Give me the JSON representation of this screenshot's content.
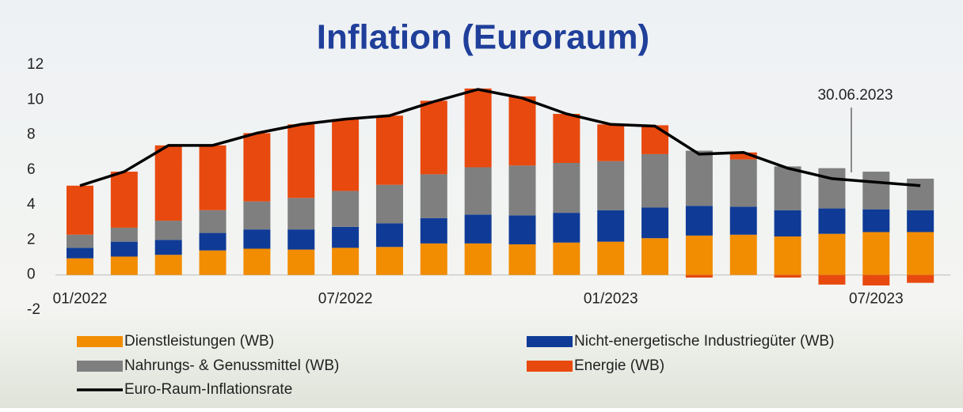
{
  "chart_data": {
    "type": "bar",
    "title": "Inflation (Euroraum)",
    "annotation": "30.06.2023",
    "categories": [
      "01/2022",
      null,
      null,
      null,
      null,
      null,
      "07/2022",
      null,
      null,
      null,
      null,
      null,
      "01/2023",
      null,
      null,
      null,
      null,
      null,
      "07/2023",
      null
    ],
    "series": [
      {
        "name": "Dienstleistungen (WB)",
        "color": "#f28c00",
        "type": "bar",
        "values": [
          0.95,
          1.05,
          1.15,
          1.4,
          1.5,
          1.45,
          1.55,
          1.6,
          1.8,
          1.8,
          1.75,
          1.85,
          1.9,
          2.1,
          2.25,
          2.3,
          2.2,
          2.35,
          2.45,
          2.45
        ]
      },
      {
        "name": "Nicht-energetische Industriegüter (WB)",
        "color": "#0f3b96",
        "type": "bar",
        "values": [
          0.6,
          0.85,
          0.85,
          1.0,
          1.1,
          1.15,
          1.2,
          1.35,
          1.45,
          1.65,
          1.65,
          1.7,
          1.8,
          1.75,
          1.7,
          1.6,
          1.5,
          1.45,
          1.3,
          1.25
        ]
      },
      {
        "name": "Nahrungs- & Genussmittel (WB)",
        "color": "#7f7f7f",
        "type": "bar",
        "values": [
          0.75,
          0.8,
          1.1,
          1.3,
          1.6,
          1.8,
          2.05,
          2.2,
          2.5,
          2.7,
          2.85,
          2.85,
          2.8,
          3.05,
          3.15,
          2.7,
          2.5,
          2.3,
          2.15,
          1.8
        ]
      },
      {
        "name": "Energie (WB)",
        "color": "#e8490f",
        "type": "bar",
        "values": [
          2.8,
          3.2,
          4.3,
          3.7,
          3.9,
          4.2,
          4.1,
          3.95,
          4.2,
          4.5,
          3.95,
          2.8,
          2.1,
          1.65,
          -0.15,
          0.4,
          -0.15,
          -0.55,
          -0.6,
          -0.45
        ]
      },
      {
        "name": "Euro-Raum-Inflationsrate",
        "color": "#000000",
        "type": "line",
        "values": [
          5.1,
          5.9,
          7.4,
          7.4,
          8.1,
          8.6,
          8.9,
          9.1,
          9.9,
          10.6,
          10.1,
          9.2,
          8.6,
          8.5,
          6.9,
          7.0,
          6.1,
          5.5,
          5.3,
          5.1
        ]
      }
    ],
    "ylim": [
      -2,
      12
    ],
    "yticks": [
      -2,
      0,
      2,
      4,
      6,
      8,
      10,
      12
    ],
    "grid": false
  }
}
